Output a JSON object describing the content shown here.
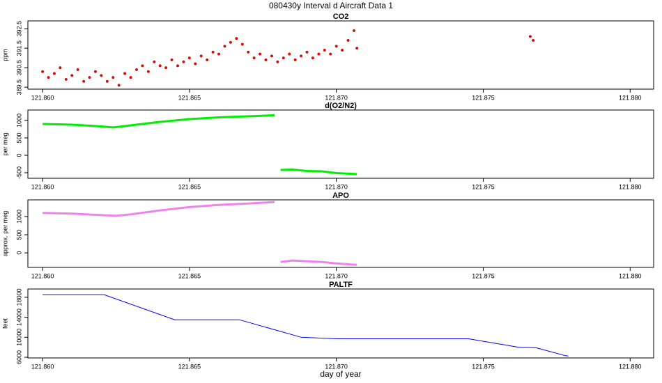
{
  "title": "080430y   Interval d Aircraft Data 1",
  "chart_data": [
    {
      "type": "scatter",
      "title": "CO2",
      "ylabel": "ppm",
      "color": "#ff0000",
      "x": [
        121.86,
        121.8602,
        121.8604,
        121.8606,
        121.8608,
        121.861,
        121.8612,
        121.8614,
        121.8616,
        121.8618,
        121.862,
        121.8622,
        121.8624,
        121.8626,
        121.8628,
        121.863,
        121.8632,
        121.8634,
        121.8636,
        121.8638,
        121.864,
        121.8642,
        121.8644,
        121.8646,
        121.8648,
        121.865,
        121.8652,
        121.8654,
        121.8656,
        121.8658,
        121.866,
        121.8662,
        121.8664,
        121.8666,
        121.8668,
        121.867,
        121.8672,
        121.8674,
        121.8676,
        121.8678,
        121.868,
        121.8682,
        121.8684,
        121.8686,
        121.8688,
        121.869,
        121.8692,
        121.8694,
        121.8696,
        121.8698,
        121.87,
        121.8702,
        121.8704,
        121.8706,
        121.8707,
        121.8766,
        121.8767
      ],
      "values": [
        390.3,
        390.0,
        390.2,
        390.5,
        389.9,
        390.1,
        390.4,
        389.8,
        390.0,
        390.3,
        390.1,
        389.8,
        390.0,
        389.6,
        390.2,
        390.0,
        390.4,
        390.6,
        390.3,
        390.8,
        390.6,
        390.5,
        390.9,
        390.6,
        390.8,
        391.0,
        390.7,
        391.1,
        390.9,
        391.3,
        391.2,
        391.6,
        391.8,
        392.0,
        391.7,
        391.3,
        391.0,
        391.2,
        390.9,
        391.1,
        390.8,
        391.0,
        391.2,
        390.9,
        391.1,
        391.3,
        391.0,
        391.2,
        391.4,
        391.2,
        391.6,
        391.4,
        391.9,
        392.4,
        391.5,
        392.1,
        391.9
      ],
      "xlim": [
        121.8595,
        121.8808
      ],
      "ylim": [
        389.4,
        392.9
      ],
      "xticks": [
        {
          "value": 121.86,
          "label": "121.860"
        },
        {
          "value": 121.865,
          "label": "121.865"
        },
        {
          "value": 121.87,
          "label": "121.870"
        },
        {
          "value": 121.875,
          "label": "121.875"
        },
        {
          "value": 121.88,
          "label": "121.880"
        }
      ],
      "yticks": [
        389.5,
        390.5,
        391.5,
        392.5
      ]
    },
    {
      "type": "line",
      "title": "d(O2/N2)",
      "ylabel": "per meg",
      "color": "#00ee00",
      "x": [
        121.86,
        121.861,
        121.862,
        121.8624,
        121.863,
        121.864,
        121.865,
        121.866,
        121.867,
        121.8679,
        121.868,
        121.8681,
        121.8685,
        121.869,
        121.8695,
        121.87,
        121.8707
      ],
      "values": [
        900,
        880,
        830,
        800,
        860,
        960,
        1040,
        1090,
        1120,
        1150,
        null,
        -420,
        -410,
        -450,
        -460,
        -510,
        -540
      ],
      "xlim": [
        121.8595,
        121.8808
      ],
      "ylim": [
        -660,
        1300
      ],
      "xticks": [
        {
          "value": 121.86,
          "label": "121.860"
        },
        {
          "value": 121.865,
          "label": "121.865"
        },
        {
          "value": 121.87,
          "label": "121.870"
        },
        {
          "value": 121.875,
          "label": "121.875"
        },
        {
          "value": 121.88,
          "label": "121.880"
        }
      ],
      "yticks": [
        -500,
        0,
        500,
        1000
      ]
    },
    {
      "type": "line",
      "title": "APO",
      "ylabel": "approx. per meg",
      "color": "#ee82ee",
      "x": [
        121.86,
        121.861,
        121.862,
        121.8625,
        121.863,
        121.864,
        121.865,
        121.866,
        121.867,
        121.8679,
        121.868,
        121.8681,
        121.8685,
        121.869,
        121.8695,
        121.87,
        121.8707
      ],
      "values": [
        1100,
        1080,
        1040,
        1020,
        1060,
        1170,
        1260,
        1320,
        1360,
        1400,
        null,
        -250,
        -210,
        -230,
        -250,
        -290,
        -330
      ],
      "xlim": [
        121.8595,
        121.8808
      ],
      "ylim": [
        -400,
        1460
      ],
      "xticks": [
        {
          "value": 121.86,
          "label": "121.860"
        },
        {
          "value": 121.865,
          "label": "121.865"
        },
        {
          "value": 121.87,
          "label": "121.870"
        },
        {
          "value": 121.875,
          "label": "121.875"
        },
        {
          "value": 121.88,
          "label": "121.880"
        }
      ],
      "yticks": [
        0,
        500,
        1000
      ]
    },
    {
      "type": "line",
      "title": "PALTF",
      "ylabel": "feet",
      "xlabel": "day of year",
      "color": "#0000ff",
      "x": [
        121.86,
        121.8621,
        121.8645,
        121.8667,
        121.8688,
        121.87,
        121.8745,
        121.8755,
        121.8762,
        121.8768,
        121.8778,
        121.8779
      ],
      "values": [
        18500,
        18500,
        13500,
        13500,
        10000,
        9700,
        9700,
        8700,
        8000,
        7900,
        6300,
        6250
      ],
      "xlim": [
        121.8595,
        121.8808
      ],
      "ylim": [
        5860,
        19660
      ],
      "xticks": [
        {
          "value": 121.86,
          "label": "121.860"
        },
        {
          "value": 121.865,
          "label": "121.865"
        },
        {
          "value": 121.87,
          "label": "121.870"
        },
        {
          "value": 121.875,
          "label": "121.875"
        },
        {
          "value": 121.88,
          "label": "121.880"
        }
      ],
      "yticks": [
        6000,
        10000,
        14000,
        18000
      ]
    }
  ]
}
